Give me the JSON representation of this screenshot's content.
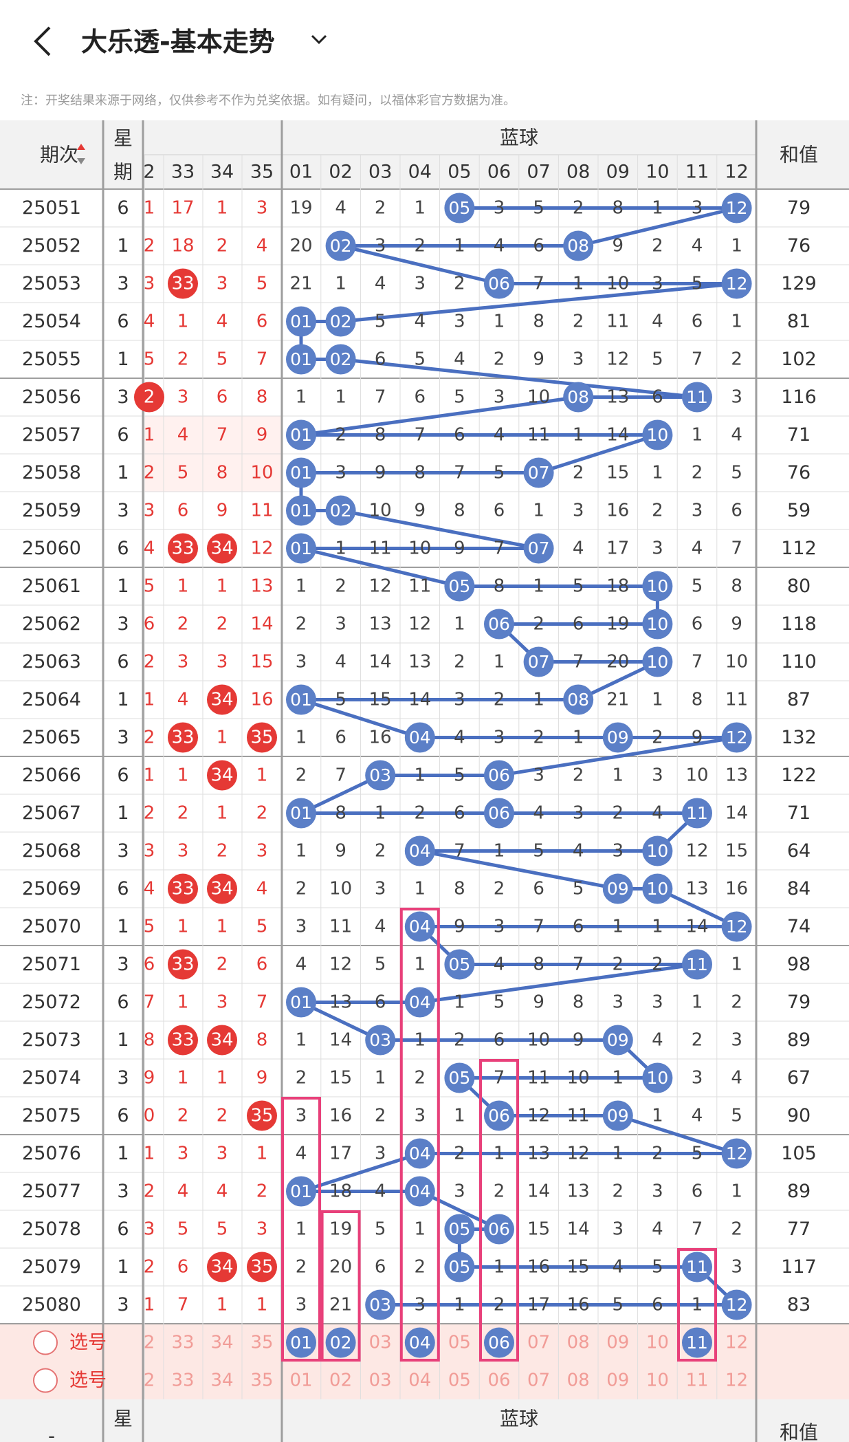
{
  "header": {
    "title": "大乐透-基本走势",
    "back_icon": "chevron-left-icon",
    "dropdown_icon": "chevron-down-icon",
    "note": "注：开奖结果来源于网络，仅供参考不作为兑奖依据。如有疑问，以福体彩官方数据为准。"
  },
  "table": {
    "col_period": "期次",
    "col_week": "星期",
    "col_week_short": "星",
    "blue_group": "蓝球",
    "col_sum": "和值",
    "front_cols": [
      "2",
      "33",
      "34",
      "35"
    ],
    "blue_cols": [
      "01",
      "02",
      "03",
      "04",
      "05",
      "06",
      "07",
      "08",
      "09",
      "10",
      "11",
      "12"
    ],
    "select_label": "选号",
    "footer_period": "-",
    "rows": [
      {
        "p": "25051",
        "w": "6",
        "f": [
          "1",
          "17",
          "1",
          "3"
        ],
        "b": [
          "19",
          "4",
          "2",
          "1",
          "05",
          "3",
          "5",
          "2",
          "8",
          "1",
          "3",
          "12"
        ],
        "s": "79"
      },
      {
        "p": "25052",
        "w": "1",
        "f": [
          "2",
          "18",
          "2",
          "4"
        ],
        "b": [
          "20",
          "02",
          "3",
          "2",
          "1",
          "4",
          "6",
          "08",
          "9",
          "2",
          "4",
          "1"
        ],
        "s": "76"
      },
      {
        "p": "25053",
        "w": "3",
        "f": [
          "3",
          "33",
          "3",
          "5"
        ],
        "b": [
          "21",
          "1",
          "4",
          "3",
          "2",
          "06",
          "7",
          "1",
          "10",
          "3",
          "5",
          "12"
        ],
        "s": "129"
      },
      {
        "p": "25054",
        "w": "6",
        "f": [
          "4",
          "1",
          "4",
          "6"
        ],
        "b": [
          "01",
          "02",
          "5",
          "4",
          "3",
          "1",
          "8",
          "2",
          "11",
          "4",
          "6",
          "1"
        ],
        "s": "81"
      },
      {
        "p": "25055",
        "w": "1",
        "f": [
          "5",
          "2",
          "5",
          "7"
        ],
        "b": [
          "01",
          "02",
          "6",
          "5",
          "4",
          "2",
          "9",
          "3",
          "12",
          "5",
          "7",
          "2"
        ],
        "s": "102"
      },
      {
        "p": "25056",
        "w": "3",
        "f": [
          "2",
          "3",
          "6",
          "8"
        ],
        "b": [
          "1",
          "1",
          "7",
          "6",
          "5",
          "3",
          "10",
          "08",
          "13",
          "6",
          "11",
          "3"
        ],
        "s": "116"
      },
      {
        "p": "25057",
        "w": "6",
        "f": [
          "1",
          "4",
          "7",
          "9"
        ],
        "b": [
          "01",
          "2",
          "8",
          "7",
          "6",
          "4",
          "11",
          "1",
          "14",
          "10",
          "1",
          "4"
        ],
        "s": "71"
      },
      {
        "p": "25058",
        "w": "1",
        "f": [
          "2",
          "5",
          "8",
          "10"
        ],
        "b": [
          "01",
          "3",
          "9",
          "8",
          "7",
          "5",
          "07",
          "2",
          "15",
          "1",
          "2",
          "5"
        ],
        "s": "76"
      },
      {
        "p": "25059",
        "w": "3",
        "f": [
          "3",
          "6",
          "9",
          "11"
        ],
        "b": [
          "01",
          "02",
          "10",
          "9",
          "8",
          "6",
          "1",
          "3",
          "16",
          "2",
          "3",
          "6"
        ],
        "s": "59"
      },
      {
        "p": "25060",
        "w": "6",
        "f": [
          "4",
          "33",
          "34",
          "12"
        ],
        "b": [
          "01",
          "1",
          "11",
          "10",
          "9",
          "7",
          "07",
          "4",
          "17",
          "3",
          "4",
          "7"
        ],
        "s": "112"
      },
      {
        "p": "25061",
        "w": "1",
        "f": [
          "5",
          "1",
          "1",
          "13"
        ],
        "b": [
          "1",
          "2",
          "12",
          "11",
          "05",
          "8",
          "1",
          "5",
          "18",
          "10",
          "5",
          "8"
        ],
        "s": "80"
      },
      {
        "p": "25062",
        "w": "3",
        "f": [
          "6",
          "2",
          "2",
          "14"
        ],
        "b": [
          "2",
          "3",
          "13",
          "12",
          "1",
          "06",
          "2",
          "6",
          "19",
          "10",
          "6",
          "9"
        ],
        "s": "118"
      },
      {
        "p": "25063",
        "w": "6",
        "f": [
          "2",
          "3",
          "3",
          "15"
        ],
        "b": [
          "3",
          "4",
          "14",
          "13",
          "2",
          "1",
          "07",
          "7",
          "20",
          "10",
          "7",
          "10"
        ],
        "s": "110"
      },
      {
        "p": "25064",
        "w": "1",
        "f": [
          "1",
          "4",
          "34",
          "16"
        ],
        "b": [
          "01",
          "5",
          "15",
          "14",
          "3",
          "2",
          "1",
          "08",
          "21",
          "1",
          "8",
          "11"
        ],
        "s": "87"
      },
      {
        "p": "25065",
        "w": "3",
        "f": [
          "2",
          "33",
          "1",
          "35"
        ],
        "b": [
          "1",
          "6",
          "16",
          "04",
          "4",
          "3",
          "2",
          "1",
          "09",
          "2",
          "9",
          "12"
        ],
        "s": "132"
      },
      {
        "p": "25066",
        "w": "6",
        "f": [
          "1",
          "1",
          "34",
          "1"
        ],
        "b": [
          "2",
          "7",
          "03",
          "1",
          "5",
          "06",
          "3",
          "2",
          "1",
          "3",
          "10",
          "13"
        ],
        "s": "122"
      },
      {
        "p": "25067",
        "w": "1",
        "f": [
          "2",
          "2",
          "1",
          "2"
        ],
        "b": [
          "01",
          "8",
          "1",
          "2",
          "6",
          "06",
          "4",
          "3",
          "2",
          "4",
          "11",
          "14"
        ],
        "s": "71"
      },
      {
        "p": "25068",
        "w": "3",
        "f": [
          "3",
          "3",
          "2",
          "3"
        ],
        "b": [
          "1",
          "9",
          "2",
          "04",
          "7",
          "1",
          "5",
          "4",
          "3",
          "10",
          "12",
          "15"
        ],
        "s": "64"
      },
      {
        "p": "25069",
        "w": "6",
        "f": [
          "4",
          "33",
          "34",
          "4"
        ],
        "b": [
          "2",
          "10",
          "3",
          "1",
          "8",
          "2",
          "6",
          "5",
          "09",
          "10",
          "13",
          "16"
        ],
        "s": "84"
      },
      {
        "p": "25070",
        "w": "1",
        "f": [
          "5",
          "1",
          "1",
          "5"
        ],
        "b": [
          "3",
          "11",
          "4",
          "04",
          "9",
          "3",
          "7",
          "6",
          "1",
          "1",
          "14",
          "12"
        ],
        "s": "74"
      },
      {
        "p": "25071",
        "w": "3",
        "f": [
          "6",
          "33",
          "2",
          "6"
        ],
        "b": [
          "4",
          "12",
          "5",
          "1",
          "05",
          "4",
          "8",
          "7",
          "2",
          "2",
          "11",
          "1"
        ],
        "s": "98"
      },
      {
        "p": "25072",
        "w": "6",
        "f": [
          "7",
          "1",
          "3",
          "7"
        ],
        "b": [
          "01",
          "13",
          "6",
          "04",
          "1",
          "5",
          "9",
          "8",
          "3",
          "3",
          "1",
          "2"
        ],
        "s": "79"
      },
      {
        "p": "25073",
        "w": "1",
        "f": [
          "8",
          "33",
          "34",
          "8"
        ],
        "b": [
          "1",
          "14",
          "03",
          "1",
          "2",
          "6",
          "10",
          "9",
          "09",
          "4",
          "2",
          "3"
        ],
        "s": "89"
      },
      {
        "p": "25074",
        "w": "3",
        "f": [
          "9",
          "1",
          "1",
          "9"
        ],
        "b": [
          "2",
          "15",
          "1",
          "2",
          "05",
          "7",
          "11",
          "10",
          "1",
          "10",
          "3",
          "4"
        ],
        "s": "67"
      },
      {
        "p": "25075",
        "w": "6",
        "f": [
          "0",
          "2",
          "2",
          "35"
        ],
        "b": [
          "3",
          "16",
          "2",
          "3",
          "1",
          "06",
          "12",
          "11",
          "09",
          "1",
          "4",
          "5"
        ],
        "s": "90"
      },
      {
        "p": "25076",
        "w": "1",
        "f": [
          "1",
          "3",
          "3",
          "1"
        ],
        "b": [
          "4",
          "17",
          "3",
          "04",
          "2",
          "1",
          "13",
          "12",
          "1",
          "2",
          "5",
          "12"
        ],
        "s": "105"
      },
      {
        "p": "25077",
        "w": "3",
        "f": [
          "2",
          "4",
          "4",
          "2"
        ],
        "b": [
          "01",
          "18",
          "4",
          "04",
          "3",
          "2",
          "14",
          "13",
          "2",
          "3",
          "6",
          "1"
        ],
        "s": "89"
      },
      {
        "p": "25078",
        "w": "6",
        "f": [
          "3",
          "5",
          "5",
          "3"
        ],
        "b": [
          "1",
          "19",
          "5",
          "1",
          "05",
          "06",
          "15",
          "14",
          "3",
          "4",
          "7",
          "2"
        ],
        "s": "77"
      },
      {
        "p": "25079",
        "w": "1",
        "f": [
          "2",
          "6",
          "34",
          "35"
        ],
        "b": [
          "2",
          "20",
          "6",
          "2",
          "05",
          "1",
          "16",
          "15",
          "4",
          "5",
          "11",
          "3"
        ],
        "s": "117"
      },
      {
        "p": "25080",
        "w": "3",
        "f": [
          "1",
          "7",
          "1",
          "1"
        ],
        "b": [
          "3",
          "21",
          "03",
          "3",
          "1",
          "2",
          "17",
          "16",
          "5",
          "6",
          "1",
          "12"
        ],
        "s": "83"
      }
    ]
  },
  "colors": {
    "red": "#e53935",
    "blue": "#5b7fc7",
    "line": "#4a6fc0",
    "pink": "#e8407a",
    "header_bg": "#f2f2f2",
    "select_bg": "#fde8e4"
  }
}
